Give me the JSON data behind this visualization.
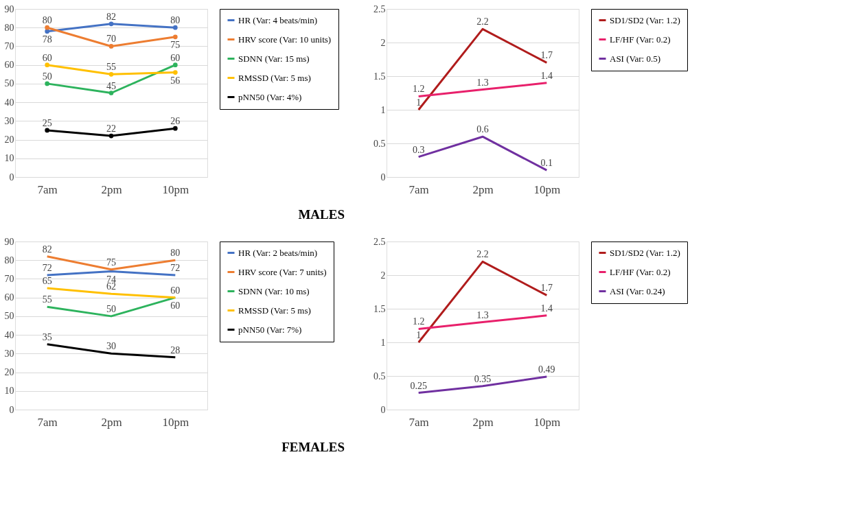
{
  "chart_data": [
    {
      "type": "line",
      "categories": [
        "7am",
        "2pm",
        "10pm"
      ],
      "ylim": [
        0,
        90
      ],
      "yticks": [
        0,
        10,
        20,
        30,
        40,
        50,
        60,
        70,
        80,
        90
      ],
      "grid": "y",
      "legend": "right",
      "marker": "circle",
      "data_labels": true,
      "annotations": [
        "MALES"
      ],
      "series": [
        {
          "name": "HR (Var: 4 beats/min)",
          "color": "#4472c4",
          "values": [
            78,
            82,
            80
          ]
        },
        {
          "name": "HRV score (Var: 10 units)",
          "color": "#ed7d31",
          "values": [
            80,
            70,
            75
          ]
        },
        {
          "name": "SDNN (Var: 15 ms)",
          "color": "#2db35d",
          "values": [
            50,
            45,
            60
          ]
        },
        {
          "name": "RMSSD (Var: 5 ms)",
          "color": "#ffc000",
          "values": [
            60,
            55,
            56
          ]
        },
        {
          "name": "pNN50 (Var: 4%)",
          "color": "#000000",
          "values": [
            25,
            22,
            26
          ]
        }
      ]
    },
    {
      "type": "line",
      "categories": [
        "7am",
        "2pm",
        "10pm"
      ],
      "ylim": [
        0,
        2.5
      ],
      "yticks": [
        0,
        0.5,
        1,
        1.5,
        2,
        2.5
      ],
      "grid": "y",
      "legend": "right",
      "data_labels": true,
      "series": [
        {
          "name": "SD1/SD2 (Var: 1.2)",
          "color": "#b01c1c",
          "values": [
            1,
            2.2,
            1.7
          ]
        },
        {
          "name": "LF/HF (Var: 0.2)",
          "color": "#e8206b",
          "values": [
            1.2,
            1.3,
            1.4
          ]
        },
        {
          "name": "ASI (Var: 0.5)",
          "color": "#7030a0",
          "values": [
            0.3,
            0.6,
            0.1
          ]
        }
      ]
    },
    {
      "type": "line",
      "categories": [
        "7am",
        "2pm",
        "10pm"
      ],
      "ylim": [
        0,
        90
      ],
      "yticks": [
        0,
        10,
        20,
        30,
        40,
        50,
        60,
        70,
        80,
        90
      ],
      "grid": "y",
      "legend": "right",
      "data_labels": true,
      "annotations": [
        "FEMALES"
      ],
      "series": [
        {
          "name": "HR (Var: 2 beats/min)",
          "color": "#4472c4",
          "values": [
            72,
            74,
            72
          ]
        },
        {
          "name": "HRV score (Var: 7 units)",
          "color": "#ed7d31",
          "values": [
            82,
            75,
            80
          ]
        },
        {
          "name": "SDNN (Var: 10 ms)",
          "color": "#2db35d",
          "values": [
            55,
            50,
            60
          ]
        },
        {
          "name": "RMSSD (Var: 5 ms)",
          "color": "#ffc000",
          "values": [
            65,
            62,
            60
          ]
        },
        {
          "name": "pNN50 (Var: 7%)",
          "color": "#000000",
          "values": [
            35,
            30,
            28
          ]
        }
      ]
    },
    {
      "type": "line",
      "categories": [
        "7am",
        "2pm",
        "10pm"
      ],
      "ylim": [
        0,
        2.5
      ],
      "yticks": [
        0,
        0.5,
        1,
        1.5,
        2,
        2.5
      ],
      "grid": "y",
      "legend": "right",
      "data_labels": true,
      "series": [
        {
          "name": "SD1/SD2 (Var: 1.2)",
          "color": "#b01c1c",
          "values": [
            1,
            2.2,
            1.7
          ]
        },
        {
          "name": "LF/HF (Var: 0.2)",
          "color": "#e8206b",
          "values": [
            1.2,
            1.3,
            1.4
          ]
        },
        {
          "name": "ASI (Var: 0.24)",
          "color": "#7030a0",
          "values": [
            0.25,
            0.35,
            0.49
          ]
        }
      ]
    }
  ]
}
